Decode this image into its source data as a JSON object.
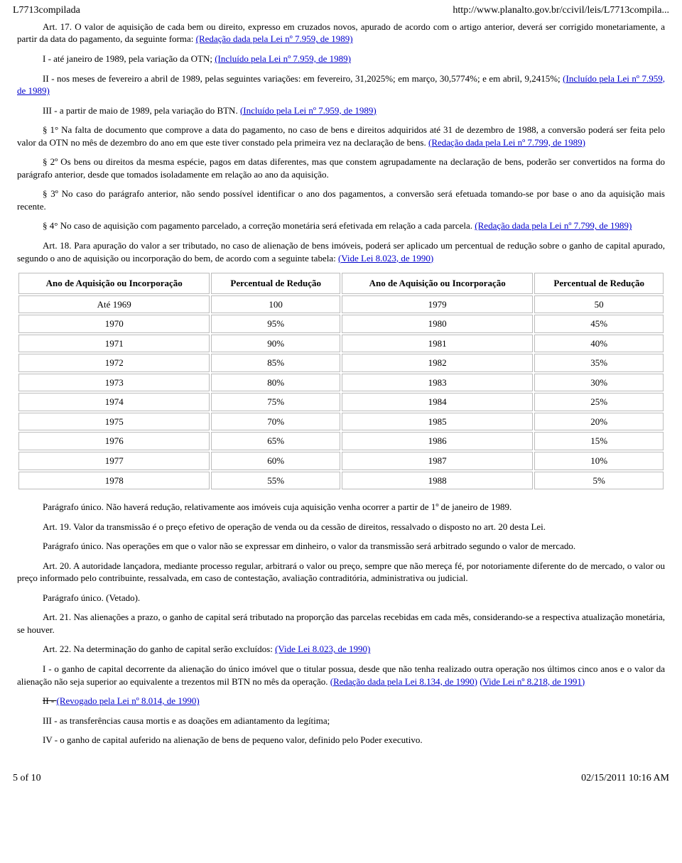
{
  "header": {
    "left": "L7713compilada",
    "right": "http://www.planalto.gov.br/ccivil/leis/L7713compila..."
  },
  "footer": {
    "left": "5 of 10",
    "right": "02/15/2011 10:16 AM"
  },
  "p": {
    "art17_a": "Art. 17. O valor de aquisição de cada bem ou direito, expresso em cruzados novos, apurado de acordo com o artigo anterior, deverá ser corrigido monetariamente, a partir da data do pagamento, da seguinte forma: ",
    "art17_link": "(Redação dada pela Lei nº 7.959, de 1989)",
    "inc1_a": "I - até janeiro de 1989, pela variação da OTN; ",
    "inc1_link": "(Incluído pela Lei nº 7.959, de 1989)",
    "inc2_a": "II - nos meses de fevereiro a abril de 1989, pelas seguintes variações: em fevereiro, 31,2025%; em março, 30,5774%; e em abril, 9,2415%; ",
    "inc2_link": "(Incluído pela Lei nº 7.959, de 1989)",
    "inc3_a": "III - a partir de maio de 1989, pela variação do BTN. ",
    "inc3_link": "(Incluído pela Lei nº 7.959, de 1989)",
    "s1_a": "§ 1° Na falta de documento que comprove a data do pagamento, no caso de bens e direitos adquiridos até 31 de dezembro de 1988, a conversão poderá ser feita pelo valor da OTN no mês de dezembro do ano em que este tiver constado pela primeira vez na declaração de bens. ",
    "s1_link": "(Redação dada pela Lei nº 7.799, de 1989)",
    "s2": "§ 2º Os bens ou direitos da mesma espécie, pagos em datas diferentes, mas que constem agrupadamente na declaração de bens, poderão ser convertidos na forma do parágrafo anterior, desde que tomados isoladamente em relação ao ano da aquisição.",
    "s3": "§ 3º No caso do parágrafo anterior, não sendo possível identificar o ano dos pagamentos, a conversão será efetuada tomando-se por base o ano da aquisição mais recente.",
    "s4_a": "§ 4° No caso de aquisição com pagamento parcelado, a correção monetária será efetivada em relação a cada parcela. ",
    "s4_link": "(Redação dada pela Lei nº 7.799, de 1989)",
    "art18_a": "Art. 18. Para apuração do valor a ser tributado, no caso de alienação de bens imóveis, poderá ser aplicado um percentual de redução sobre o ganho de capital apurado, segundo o ano de aquisição ou incorporação do bem, de acordo com a seguinte tabela: ",
    "art18_link": "(Vide Lei 8.023, de 1990)",
    "pu18": "Parágrafo único. Não haverá redução, relativamente aos imóveis cuja aquisição venha ocorrer a partir de 1º de janeiro de 1989.",
    "art19": "Art. 19. Valor da transmissão é o preço efetivo de operação de venda ou da cessão de direitos, ressalvado o disposto no art. 20 desta Lei.",
    "pu19": "Parágrafo único. Nas operações em que o valor não se expressar em dinheiro, o valor da transmissão será arbitrado segundo o valor de mercado.",
    "art20": "Art. 20. A autoridade lançadora, mediante processo regular, arbitrará o valor ou preço, sempre que não mereça fé, por notoriamente diferente do de mercado, o valor ou preço informado pelo contribuinte, ressalvada, em caso de contestação, avaliação contraditória, administrativa ou judicial.",
    "pu20": "Parágrafo único. (Vetado).",
    "art21": "Art. 21. Nas alienações a prazo, o ganho de capital será tributado na proporção das parcelas recebidas em cada mês, considerando-se a respectiva atualização monetária, se houver.",
    "art22_a": "Art. 22. Na determinação do ganho de capital serão excluídos: ",
    "art22_link": "(Vide Lei 8.023, de 1990)",
    "i22_a": "I - o ganho de capital decorrente da alienação do único imóvel que o titular possua, desde que não tenha realizado outra operação nos últimos cinco anos e o valor da alienação não seja superior ao equivalente a trezentos mil BTN no mês da operação. ",
    "i22_link1": "(Redação dada pela Lei 8.134, de 1990)",
    "i22_link2": " (Vide Lei nº 8.218, de 1991)",
    "ii22_a": "II - ",
    "ii22_link": "(Revogado pela Lei nº 8.014, de 1990)",
    "iii22": "III - as transferências causa mortis e as doações em adiantamento da legítima;",
    "iv22": "IV - o ganho de capital auferido na alienação de bens de pequeno valor, definido pelo Poder executivo."
  },
  "table": {
    "h1": "Ano de Aquisição ou Incorporação",
    "h2": "Percentual de Redução",
    "h3": "Ano de Aquisição ou Incorporação",
    "h4": "Percentual de Redução",
    "rows": [
      [
        "Até 1969",
        "100",
        "1979",
        "50"
      ],
      [
        "1970",
        "95%",
        "1980",
        "45%"
      ],
      [
        "1971",
        "90%",
        "1981",
        "40%"
      ],
      [
        "1972",
        "85%",
        "1982",
        "35%"
      ],
      [
        "1973",
        "80%",
        "1983",
        "30%"
      ],
      [
        "1974",
        "75%",
        "1984",
        "25%"
      ],
      [
        "1975",
        "70%",
        "1985",
        "20%"
      ],
      [
        "1976",
        "65%",
        "1986",
        "15%"
      ],
      [
        "1977",
        "60%",
        "1987",
        "10%"
      ],
      [
        "1978",
        "55%",
        "1988",
        "5%"
      ]
    ]
  }
}
